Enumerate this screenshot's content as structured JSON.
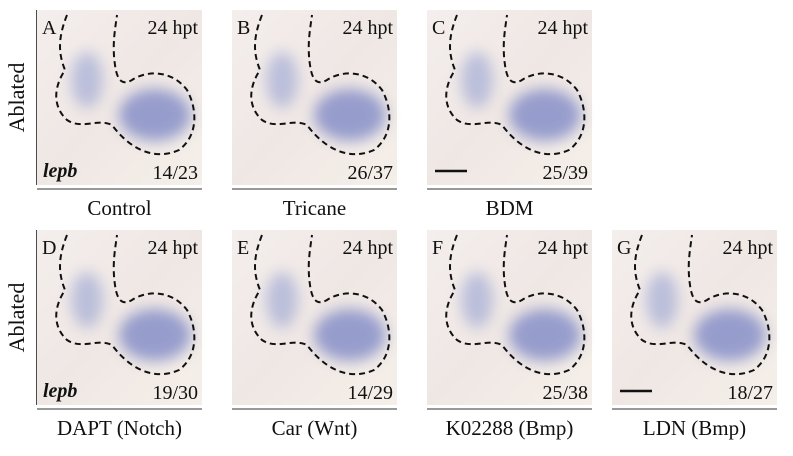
{
  "rows": [
    {
      "label": "Ablated",
      "gene": "lepb",
      "panels": [
        {
          "letter": "A",
          "time": "24 hpt",
          "count": "14/23",
          "caption": "Control"
        },
        {
          "letter": "B",
          "time": "24 hpt",
          "count": "26/37",
          "caption": "Tricane"
        },
        {
          "letter": "C",
          "time": "24 hpt",
          "count": "25/39",
          "caption": "BDM"
        }
      ]
    },
    {
      "label": "Ablated",
      "gene": "lepb",
      "panels": [
        {
          "letter": "D",
          "time": "24 hpt",
          "count": "19/30",
          "caption": "DAPT (Notch)"
        },
        {
          "letter": "E",
          "time": "24 hpt",
          "count": "14/29",
          "caption": "Car (Wnt)"
        },
        {
          "letter": "F",
          "time": "24 hpt",
          "count": "25/38",
          "caption": "K02288 (Bmp)"
        },
        {
          "letter": "G",
          "time": "24 hpt",
          "count": "18/27",
          "caption": "LDN (Bmp)"
        }
      ]
    }
  ]
}
